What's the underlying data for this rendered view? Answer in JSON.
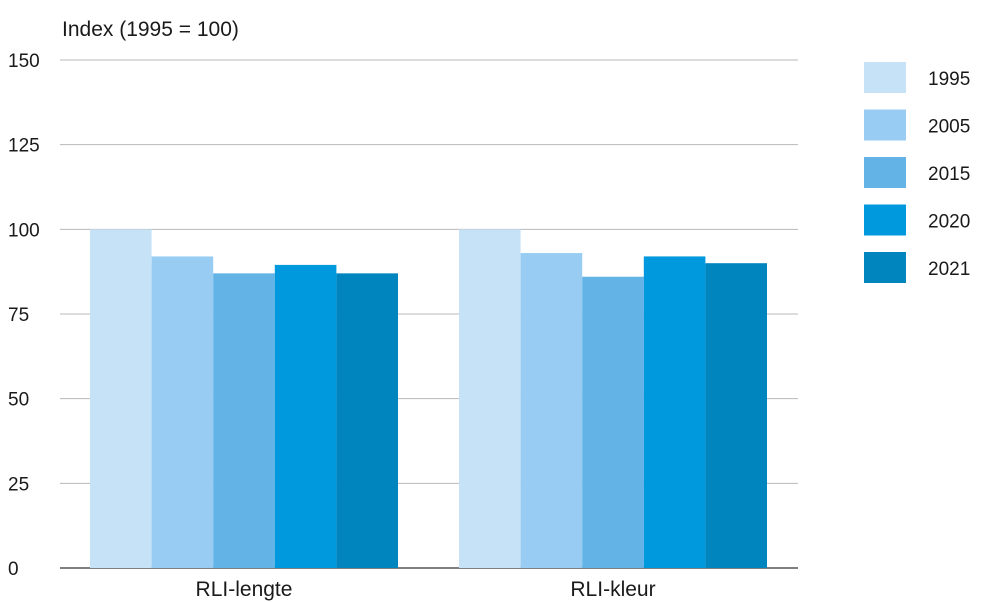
{
  "chart_data": {
    "type": "bar",
    "ylabel": "Index (1995 = 100)",
    "xlabel": "",
    "ylim": [
      0,
      150
    ],
    "yticks": [
      0,
      25,
      50,
      75,
      100,
      125,
      150
    ],
    "grid": true,
    "legend_position": "right",
    "categories": [
      "RLI-lengte",
      "RLI-kleur"
    ],
    "series": [
      {
        "name": "1995",
        "color": "#c6e2f7",
        "values": [
          100,
          100
        ]
      },
      {
        "name": "2005",
        "color": "#99ccf2",
        "values": [
          92,
          93
        ]
      },
      {
        "name": "2015",
        "color": "#63b3e7",
        "values": [
          87,
          86
        ]
      },
      {
        "name": "2020",
        "color": "#0099de",
        "values": [
          89.5,
          92
        ]
      },
      {
        "name": "2021",
        "color": "#0085bf",
        "values": [
          87,
          90
        ]
      }
    ]
  }
}
